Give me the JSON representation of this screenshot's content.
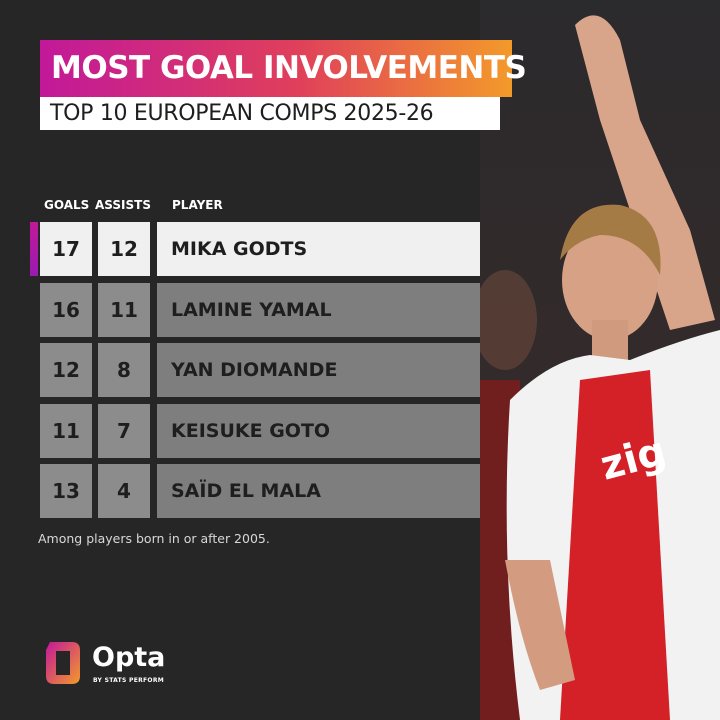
{
  "header": {
    "title": "MOST GOAL INVOLVEMENTS",
    "subtitle": "TOP 10 EUROPEAN COMPS 2025-26"
  },
  "table": {
    "columns": [
      "GOALS",
      "ASSISTS",
      "PLAYER"
    ],
    "rows": [
      [
        17,
        12,
        "MIKA GODTS"
      ],
      [
        16,
        11,
        "LAMINE YAMAL"
      ],
      [
        12,
        8,
        "YAN DIOMANDE"
      ],
      [
        11,
        7,
        "KEISUKE GOTO"
      ],
      [
        13,
        4,
        "SAÏD EL MALA"
      ]
    ]
  },
  "footnote": "Among players born in or after 2005.",
  "logo": {
    "name": "Opta",
    "tagline": "BY STATS PERFORM"
  }
}
